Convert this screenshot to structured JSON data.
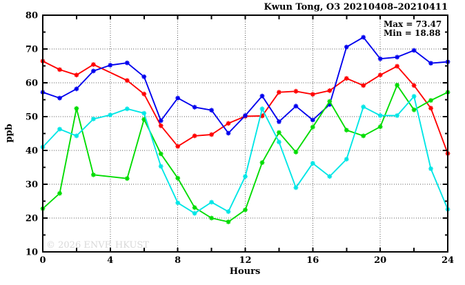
{
  "title": "Kwun Tong, O3 20210408–20210411",
  "annotations": {
    "max": "Max = 73.47",
    "min": "Min = 18.88"
  },
  "watermark": "© 2026 ENVF, HKUST",
  "chart_data": {
    "type": "line",
    "title": "Kwun Tong, O3 20210408–20210411",
    "xlabel": "Hours",
    "ylabel": "ppb",
    "xlim": [
      0,
      24
    ],
    "ylim": [
      10,
      80
    ],
    "x_labeled_ticks": [
      0,
      4,
      8,
      12,
      16,
      20,
      24
    ],
    "x_tick_step": 2,
    "y_labeled_ticks": [
      10,
      20,
      30,
      40,
      50,
      60,
      70,
      80
    ],
    "y_minor_tick_step": 5,
    "x_gridlines": [
      4,
      8,
      12,
      16,
      20
    ],
    "y_gridlines": [
      20,
      30,
      40,
      50,
      60,
      70
    ],
    "grid": true,
    "legend": "none",
    "marker": "asterisk",
    "stats": {
      "max": 73.47,
      "min": 18.88
    },
    "x": [
      0,
      1,
      2,
      3,
      4,
      5,
      6,
      7,
      8,
      9,
      10,
      11,
      12,
      13,
      14,
      15,
      16,
      17,
      18,
      19,
      20,
      21,
      22,
      23,
      24
    ],
    "series": [
      {
        "name": "red",
        "color": "#ff0000",
        "values": [
          66.4,
          63.9,
          62.3,
          65.4,
          null,
          60.7,
          56.7,
          47.3,
          41.2,
          44.3,
          44.7,
          48.0,
          50.1,
          50.2,
          57.2,
          57.5,
          56.6,
          57.7,
          61.3,
          59.2,
          62.3,
          64.9,
          59.2,
          52.5,
          39.1
        ]
      },
      {
        "name": "blue",
        "color": "#0000ee",
        "values": [
          57.2,
          55.5,
          58.2,
          63.5,
          65.2,
          65.9,
          61.8,
          48.8,
          55.5,
          52.8,
          51.9,
          45.1,
          50.3,
          56.1,
          48.5,
          53.1,
          49.0,
          53.6,
          70.6,
          73.47,
          67.1,
          67.6,
          69.6,
          65.8,
          66.2
        ]
      },
      {
        "name": "green",
        "color": "#00dc00",
        "values": [
          22.8,
          27.3,
          52.4,
          32.8,
          null,
          31.7,
          49.2,
          39.0,
          31.8,
          23.1,
          20.0,
          18.88,
          22.4,
          36.4,
          45.3,
          39.5,
          46.9,
          54.5,
          46.0,
          44.3,
          47.0,
          59.3,
          52.0,
          54.8,
          57.2
        ]
      },
      {
        "name": "cyan",
        "color": "#00e6e6",
        "values": [
          41.0,
          46.3,
          44.3,
          49.3,
          50.5,
          52.3,
          51.0,
          35.3,
          24.5,
          21.4,
          24.7,
          21.9,
          32.3,
          52.3,
          42.5,
          29.0,
          36.2,
          32.3,
          37.4,
          52.9,
          50.3,
          50.3,
          56.0,
          34.6,
          22.6
        ]
      }
    ]
  }
}
